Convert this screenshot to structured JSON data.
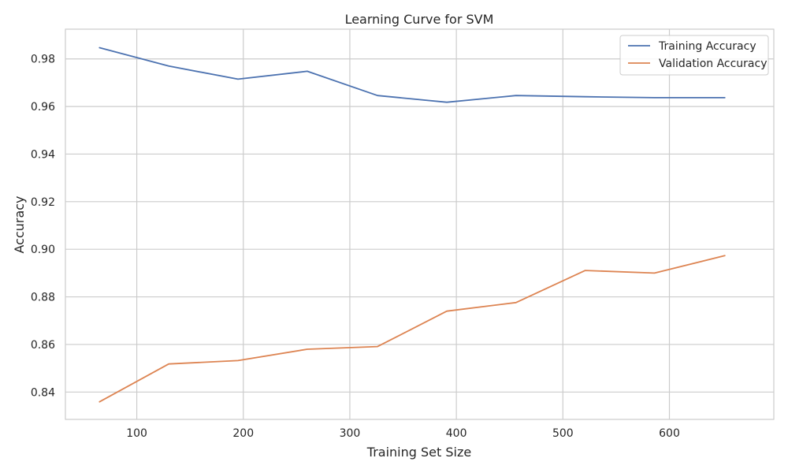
{
  "chart_data": {
    "type": "line",
    "title": "Learning Curve for SVM",
    "xlabel": "Training Set Size",
    "ylabel": "Accuracy",
    "xlim": [
      33,
      698
    ],
    "ylim": [
      0.8285,
      0.9925
    ],
    "xticks": [
      100,
      200,
      300,
      400,
      500,
      600
    ],
    "yticks": [
      0.84,
      0.86,
      0.88,
      0.9,
      0.92,
      0.94,
      0.96,
      0.98
    ],
    "ytick_labels": [
      "0.84",
      "0.86",
      "0.88",
      "0.90",
      "0.92",
      "0.94",
      "0.96",
      "0.98"
    ],
    "grid": true,
    "legend_position": "upper right",
    "x": [
      65,
      130,
      195,
      260,
      326,
      391,
      456,
      521,
      586,
      652
    ],
    "series": [
      {
        "name": "Training Accuracy",
        "color": "#4c72b0",
        "values": [
          0.9847,
          0.977,
          0.9715,
          0.9748,
          0.9646,
          0.9618,
          0.9646,
          0.9641,
          0.9637,
          0.9637
        ]
      },
      {
        "name": "Validation Accuracy",
        "color": "#dd8452",
        "values": [
          0.8359,
          0.8518,
          0.8532,
          0.858,
          0.8591,
          0.874,
          0.8776,
          0.8911,
          0.89,
          0.8973
        ]
      }
    ]
  }
}
